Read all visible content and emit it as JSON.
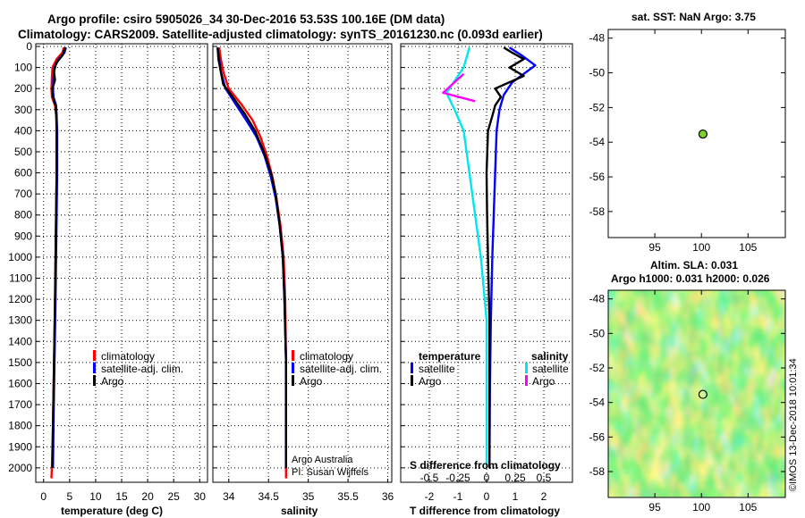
{
  "header": {
    "line1": "Argo profile: csiro 5905026_34 30-Dec-2016 53.53S 100.16E (DM data)",
    "line2": "Climatology: CARS2009. Satellite-adjusted climatology: synTS_20161230.nc (0.093d earlier)"
  },
  "colors": {
    "climatology": "#ff0000",
    "satellite": "#0000ff",
    "argo": "#000000",
    "sat_salinity": "#00e5ee",
    "argo_salinity": "#ff00ff",
    "marker": "#80d030"
  },
  "depth_axis": {
    "range": [
      0,
      2060
    ],
    "ticks": [
      0,
      100,
      200,
      300,
      400,
      500,
      600,
      700,
      800,
      900,
      1000,
      1100,
      1200,
      1300,
      1400,
      1500,
      1600,
      1700,
      1800,
      1900,
      2000
    ]
  },
  "chart_data": [
    {
      "type": "line",
      "id": "temperature",
      "xlabel": "temperature (deg C)",
      "xlim": [
        -1.5,
        31.5
      ],
      "ticks": [
        0,
        5,
        10,
        15,
        20,
        25,
        30
      ],
      "tick_labels": [
        "0",
        "5",
        "10",
        "15",
        "20",
        "25",
        "30"
      ],
      "ylim": [
        0,
        2060
      ],
      "legend": [
        "climatology",
        "satellite-adj. clim.",
        "Argo"
      ],
      "series": [
        {
          "name": "climatology",
          "color": "#ff0000",
          "points": [
            [
              3.9,
              5
            ],
            [
              3.6,
              30
            ],
            [
              2.5,
              60
            ],
            [
              1.7,
              100
            ],
            [
              1.6,
              150
            ],
            [
              1.5,
              200
            ],
            [
              1.6,
              240
            ],
            [
              2.2,
              280
            ],
            [
              2.4,
              330
            ],
            [
              2.5,
              400
            ],
            [
              2.5,
              600
            ],
            [
              2.4,
              800
            ],
            [
              2.3,
              1000
            ],
            [
              2.2,
              1200
            ],
            [
              2.0,
              1500
            ],
            [
              1.8,
              1800
            ],
            [
              1.6,
              2000
            ],
            [
              1.5,
              2050
            ]
          ]
        },
        {
          "name": "satellite-adj. clim.",
          "color": "#0000ff",
          "points": [
            [
              4.3,
              5
            ],
            [
              4.0,
              30
            ],
            [
              2.9,
              60
            ],
            [
              2.1,
              100
            ],
            [
              1.9,
              150
            ],
            [
              1.8,
              200
            ],
            [
              1.9,
              240
            ],
            [
              2.4,
              280
            ],
            [
              2.5,
              330
            ],
            [
              2.6,
              400
            ],
            [
              2.6,
              600
            ],
            [
              2.5,
              800
            ],
            [
              2.4,
              1000
            ],
            [
              2.3,
              1200
            ],
            [
              2.1,
              1500
            ],
            [
              1.9,
              1800
            ],
            [
              1.8,
              2000
            ]
          ]
        },
        {
          "name": "Argo",
          "color": "#000000",
          "points": [
            [
              4.1,
              5
            ],
            [
              3.7,
              40
            ],
            [
              2.4,
              80
            ],
            [
              2.0,
              120
            ],
            [
              2.2,
              160
            ],
            [
              1.7,
              200
            ],
            [
              1.8,
              240
            ],
            [
              2.3,
              280
            ],
            [
              2.5,
              330
            ],
            [
              2.5,
              400
            ],
            [
              2.5,
              600
            ],
            [
              2.4,
              800
            ],
            [
              2.3,
              1000
            ],
            [
              2.2,
              1200
            ],
            [
              2.0,
              1500
            ],
            [
              1.8,
              1800
            ],
            [
              1.7,
              2000
            ]
          ]
        }
      ]
    },
    {
      "type": "line",
      "id": "salinity",
      "xlabel": "salinity",
      "xlim": [
        33.8,
        36.05
      ],
      "ticks": [
        34,
        34.5,
        35,
        35.5,
        36
      ],
      "tick_labels": [
        "34",
        "34.5",
        "35",
        "35.5",
        "36"
      ],
      "ylim": [
        0,
        2060
      ],
      "legend": [
        "climatology",
        "satellite-adj. clim.",
        "Argo"
      ],
      "annotation": [
        "Argo Australia",
        "PI: Susan Wijffels"
      ],
      "series": [
        {
          "name": "climatology",
          "color": "#ff0000",
          "points": [
            [
              33.88,
              5
            ],
            [
              33.9,
              60
            ],
            [
              33.93,
              120
            ],
            [
              34.0,
              200
            ],
            [
              34.15,
              270
            ],
            [
              34.3,
              350
            ],
            [
              34.4,
              430
            ],
            [
              34.48,
              520
            ],
            [
              34.55,
              620
            ],
            [
              34.6,
              720
            ],
            [
              34.65,
              850
            ],
            [
              34.69,
              1000
            ],
            [
              34.71,
              1200
            ],
            [
              34.72,
              1500
            ],
            [
              34.72,
              1800
            ],
            [
              34.72,
              2050
            ]
          ]
        },
        {
          "name": "satellite-adj. clim.",
          "color": "#0000ff",
          "points": [
            [
              33.86,
              5
            ],
            [
              33.88,
              60
            ],
            [
              33.9,
              120
            ],
            [
              33.96,
              200
            ],
            [
              34.08,
              270
            ],
            [
              34.22,
              350
            ],
            [
              34.35,
              430
            ],
            [
              34.45,
              520
            ],
            [
              34.53,
              620
            ],
            [
              34.59,
              720
            ],
            [
              34.64,
              850
            ],
            [
              34.68,
              1000
            ],
            [
              34.7,
              1200
            ],
            [
              34.72,
              1500
            ],
            [
              34.72,
              1800
            ],
            [
              34.72,
              2000
            ]
          ]
        },
        {
          "name": "Argo",
          "color": "#000000",
          "points": [
            [
              33.86,
              5
            ],
            [
              33.87,
              60
            ],
            [
              33.9,
              120
            ],
            [
              33.93,
              180
            ],
            [
              34.05,
              240
            ],
            [
              34.2,
              320
            ],
            [
              34.33,
              400
            ],
            [
              34.44,
              500
            ],
            [
              34.53,
              600
            ],
            [
              34.59,
              700
            ],
            [
              34.64,
              850
            ],
            [
              34.68,
              1000
            ],
            [
              34.7,
              1200
            ],
            [
              34.72,
              1500
            ],
            [
              34.72,
              1800
            ],
            [
              34.72,
              2000
            ]
          ]
        }
      ]
    },
    {
      "type": "line",
      "id": "differences",
      "xlabel": "T difference from climatology",
      "xlabel_top": "S difference from climatology",
      "xlim": [
        -3,
        3
      ],
      "ticks": [
        -2,
        -1,
        0,
        1,
        2
      ],
      "tick_labels": [
        "-2",
        "-1",
        "0",
        "1",
        "2"
      ],
      "s_ticks": [
        -0.5,
        -0.25,
        0,
        0.25,
        0.5
      ],
      "s_tick_labels": [
        "-0.5",
        "-0.25",
        "0",
        "0.25",
        "0.5"
      ],
      "ylim": [
        0,
        2060
      ],
      "legend_left_title": "temperature",
      "legend_right_title": "salinity",
      "legend_left": [
        "satellite",
        "Argo"
      ],
      "legend_right": [
        "satellite",
        "Argo"
      ],
      "series": [
        {
          "name": "satellite",
          "group": "temperature",
          "color": "#0000ff",
          "points": [
            [
              0.8,
              5
            ],
            [
              1.2,
              40
            ],
            [
              1.7,
              90
            ],
            [
              1.3,
              130
            ],
            [
              0.9,
              170
            ],
            [
              0.6,
              230
            ],
            [
              0.45,
              300
            ],
            [
              0.35,
              400
            ],
            [
              0.3,
              600
            ],
            [
              0.25,
              800
            ],
            [
              0.2,
              1000
            ],
            [
              0.15,
              1300
            ],
            [
              0.12,
              1600
            ],
            [
              0.1,
              2000
            ]
          ]
        },
        {
          "name": "Argo",
          "group": "temperature",
          "color": "#000000",
          "points": [
            [
              0.6,
              5
            ],
            [
              0.9,
              30
            ],
            [
              1.3,
              60
            ],
            [
              0.8,
              100
            ],
            [
              1.3,
              140
            ],
            [
              0.3,
              200
            ],
            [
              0.5,
              240
            ],
            [
              0.3,
              280
            ],
            [
              0.2,
              330
            ],
            [
              0.05,
              400
            ],
            [
              0.0,
              600
            ],
            [
              0.02,
              800
            ],
            [
              0.05,
              1000
            ],
            [
              0.1,
              1300
            ],
            [
              0.1,
              1600
            ],
            [
              0.1,
              2000
            ]
          ]
        },
        {
          "name": "satellite",
          "group": "salinity",
          "color": "#00e5ee",
          "points": [
            [
              -0.15,
              5
            ],
            [
              -0.2,
              100
            ],
            [
              -0.35,
              220
            ],
            [
              -0.28,
              300
            ],
            [
              -0.2,
              400
            ],
            [
              -0.15,
              600
            ],
            [
              -0.1,
              800
            ],
            [
              -0.05,
              1000
            ],
            [
              0.0,
              1300
            ],
            [
              0.0,
              1600
            ],
            [
              0.0,
              2000
            ]
          ]
        },
        {
          "name": "Argo",
          "group": "salinity",
          "color": "#ff00ff",
          "points": [
            [
              -0.2,
              130
            ],
            [
              -0.3,
              180
            ],
            [
              -0.38,
              220
            ],
            [
              -0.1,
              260
            ]
          ]
        }
      ]
    },
    {
      "type": "scatter",
      "id": "location-map",
      "title": "sat. SST: NaN Argo: 3.75",
      "xlim": [
        90,
        109
      ],
      "ylim": [
        -59.5,
        -47.5
      ],
      "xticks": [
        95,
        100,
        105
      ],
      "yticks": [
        -48,
        -50,
        -52,
        -54,
        -56,
        -58
      ],
      "points": [
        {
          "lon": 100.16,
          "lat": -53.53
        }
      ]
    },
    {
      "type": "heatmap",
      "id": "sla-map",
      "title_line1": "Altim. SLA: 0.031",
      "title_line2": "Argo h1000: 0.031 h2000: 0.026",
      "xlim": [
        90,
        109
      ],
      "ylim": [
        -59.5,
        -47.5
      ],
      "xticks": [
        95,
        100,
        105
      ],
      "yticks": [
        -48,
        -50,
        -52,
        -54,
        -56,
        -58
      ],
      "points": [
        {
          "lon": 100.16,
          "lat": -53.53
        }
      ]
    }
  ],
  "footer": {
    "stamp": "©IMOS 13-Dec-2018 10:01:34"
  }
}
